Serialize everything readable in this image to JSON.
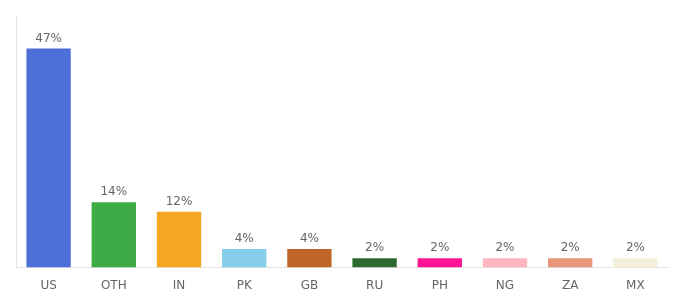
{
  "chart_data": {
    "type": "bar",
    "categories": [
      "US",
      "OTH",
      "IN",
      "PK",
      "GB",
      "RU",
      "PH",
      "NG",
      "ZA",
      "MX"
    ],
    "values": [
      47,
      14,
      12,
      4,
      4,
      2,
      2,
      2,
      2,
      2
    ],
    "value_labels": [
      "47%",
      "14%",
      "12%",
      "4%",
      "4%",
      "2%",
      "2%",
      "2%",
      "2%",
      "2%"
    ],
    "colors": [
      "#4F6FD8",
      "#3DAA45",
      "#F5A623",
      "#87CEEB",
      "#C0652A",
      "#2D6A2D",
      "#FF1493",
      "#FFB6C1",
      "#E8967A",
      "#F5F0DC"
    ],
    "ylim": [
      0,
      54
    ],
    "data_labels": true,
    "tick_labels": "x",
    "grid": false
  }
}
